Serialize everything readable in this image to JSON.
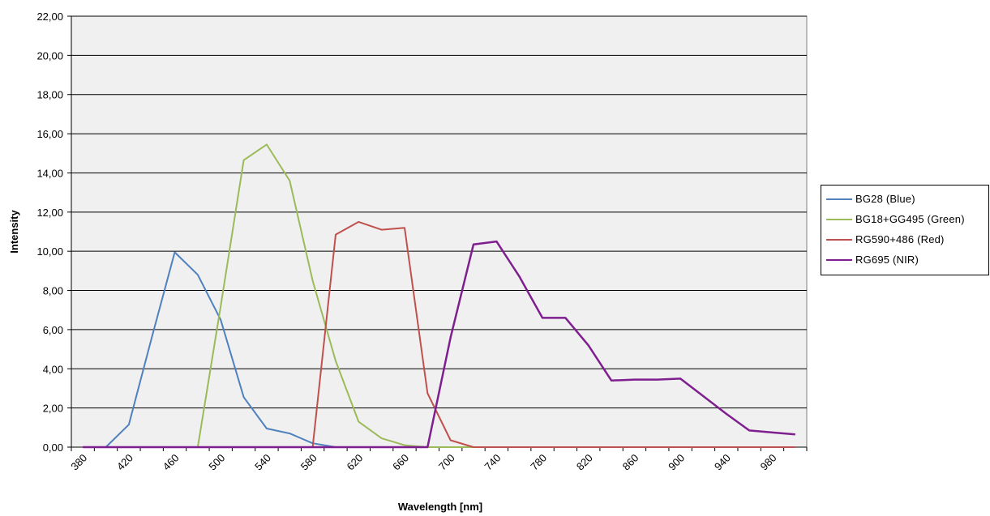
{
  "chart_data": {
    "type": "line",
    "xlabel": "Wavelength [nm]",
    "ylabel": "Intensity",
    "x": [
      380,
      400,
      420,
      440,
      460,
      480,
      500,
      520,
      540,
      560,
      580,
      600,
      620,
      640,
      660,
      680,
      700,
      720,
      740,
      760,
      780,
      800,
      820,
      840,
      860,
      880,
      900,
      920,
      940,
      960,
      980,
      1000
    ],
    "x_tick_labels": [
      "380",
      "420",
      "460",
      "500",
      "540",
      "580",
      "620",
      "660",
      "700",
      "740",
      "780",
      "820",
      "860",
      "900",
      "940",
      "980"
    ],
    "y_tick_labels": [
      "0,00",
      "2,00",
      "4,00",
      "6,00",
      "8,00",
      "10,00",
      "12,00",
      "14,00",
      "16,00",
      "18,00",
      "20,00",
      "22,00"
    ],
    "ylim": [
      0,
      22
    ],
    "grid": "horizontal",
    "plot_background": "#f0f0f0",
    "legend_position": "right",
    "series": [
      {
        "name": "BG28 (Blue)",
        "color": "#4f81bd",
        "values": [
          0,
          0,
          1.15,
          5.6,
          9.95,
          8.8,
          6.5,
          2.55,
          0.95,
          0.7,
          0.2,
          0,
          0,
          0,
          0,
          0,
          0,
          0,
          0,
          0,
          0,
          0,
          0,
          0,
          0,
          0,
          0,
          0,
          0,
          0,
          0,
          0
        ]
      },
      {
        "name": "BG18+GG495 (Green)",
        "color": "#9bbb59",
        "values": [
          0,
          0,
          0,
          0,
          0,
          0,
          7.2,
          14.65,
          15.45,
          13.6,
          8.5,
          4.4,
          1.3,
          0.45,
          0.1,
          0,
          0,
          0,
          0,
          0,
          0,
          0,
          0,
          0,
          0,
          0,
          0,
          0,
          0,
          0,
          0,
          0
        ]
      },
      {
        "name": "RG590+486 (Red)",
        "color": "#c0504d",
        "values": [
          0,
          0,
          0,
          0,
          0,
          0,
          0,
          0,
          0,
          0,
          0,
          10.85,
          11.5,
          11.1,
          11.2,
          2.75,
          0.35,
          0,
          0,
          0,
          0,
          0,
          0,
          0,
          0,
          0,
          0,
          0,
          0,
          0,
          0,
          0
        ]
      },
      {
        "name": "RG695 (NIR)",
        "color": "#7f1f8f",
        "values": [
          0,
          0,
          0,
          0,
          0,
          0,
          0,
          0,
          0,
          0,
          0,
          0,
          0,
          0,
          0,
          0,
          5.6,
          10.35,
          10.5,
          8.7,
          6.6,
          6.6,
          5.2,
          3.4,
          3.45,
          3.45,
          3.5,
          2.6,
          1.7,
          0.85,
          0.75,
          0.65
        ]
      }
    ]
  }
}
